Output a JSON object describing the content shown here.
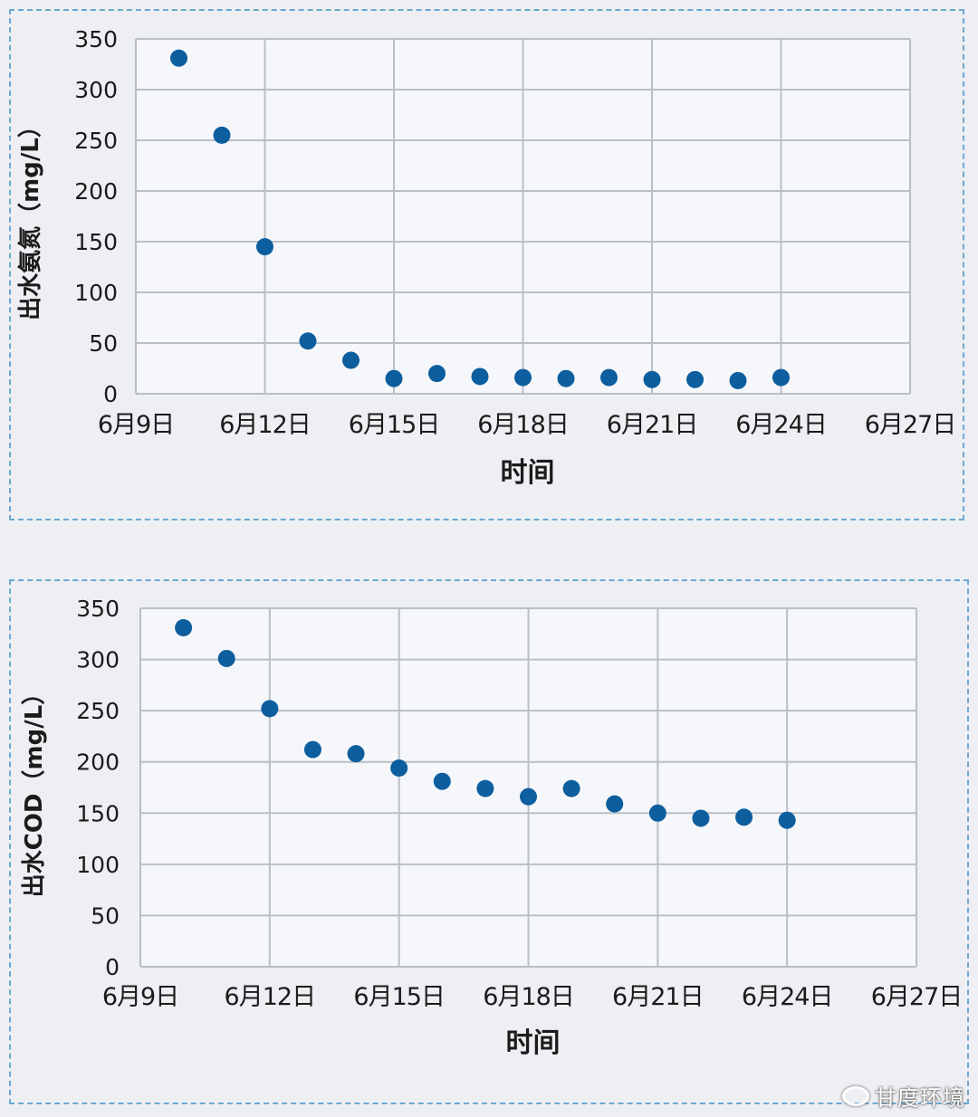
{
  "colors": {
    "marker": "#0d5e9e",
    "grid": "#b9bfc8",
    "plot_bg": "#f6f7fa",
    "text": "#1b1b1b",
    "panel_border": "#6aa9d4"
  },
  "watermark": {
    "text": "甘度环境",
    "icon": "weibo-icon"
  },
  "chart_data": [
    {
      "type": "scatter",
      "ylabel": "出水氨氮（mg/L）",
      "xlabel": "时间",
      "ylim": [
        0,
        350
      ],
      "yticks": [
        0,
        50,
        100,
        150,
        200,
        250,
        300,
        350
      ],
      "xlim": [
        "2000-06-09",
        "2000-06-27"
      ],
      "xtick_labels": [
        "6月9日",
        "6月12日",
        "6月15日",
        "6月18日",
        "6月21日",
        "6月24日",
        "6月27日"
      ],
      "grid": true,
      "legend": "none",
      "points": [
        {
          "x": "6月10日",
          "y": 331
        },
        {
          "x": "6月11日",
          "y": 255
        },
        {
          "x": "6月12日",
          "y": 145
        },
        {
          "x": "6月13日",
          "y": 52
        },
        {
          "x": "6月14日",
          "y": 33
        },
        {
          "x": "6月15日",
          "y": 15
        },
        {
          "x": "6月16日",
          "y": 20
        },
        {
          "x": "6月17日",
          "y": 17
        },
        {
          "x": "6月18日",
          "y": 16
        },
        {
          "x": "6月19日",
          "y": 15
        },
        {
          "x": "6月20日",
          "y": 16
        },
        {
          "x": "6月21日",
          "y": 14
        },
        {
          "x": "6月22日",
          "y": 14
        },
        {
          "x": "6月23日",
          "y": 13
        },
        {
          "x": "6月24日",
          "y": 16
        }
      ]
    },
    {
      "type": "scatter",
      "ylabel": "出水COD（mg/L）",
      "xlabel": "时间",
      "ylim": [
        0,
        350
      ],
      "yticks": [
        0,
        50,
        100,
        150,
        200,
        250,
        300,
        350
      ],
      "xlim": [
        "2000-06-09",
        "2000-06-27"
      ],
      "xtick_labels": [
        "6月9日",
        "6月12日",
        "6月15日",
        "6月18日",
        "6月21日",
        "6月24日",
        "6月27日"
      ],
      "grid": true,
      "legend": "none",
      "points": [
        {
          "x": "6月10日",
          "y": 331
        },
        {
          "x": "6月11日",
          "y": 301
        },
        {
          "x": "6月12日",
          "y": 252
        },
        {
          "x": "6月13日",
          "y": 212
        },
        {
          "x": "6月14日",
          "y": 208
        },
        {
          "x": "6月15日",
          "y": 194
        },
        {
          "x": "6月16日",
          "y": 181
        },
        {
          "x": "6月17日",
          "y": 174
        },
        {
          "x": "6月18日",
          "y": 166
        },
        {
          "x": "6月19日",
          "y": 174
        },
        {
          "x": "6月20日",
          "y": 159
        },
        {
          "x": "6月21日",
          "y": 150
        },
        {
          "x": "6月22日",
          "y": 145
        },
        {
          "x": "6月23日",
          "y": 146
        },
        {
          "x": "6月24日",
          "y": 143
        }
      ]
    }
  ]
}
